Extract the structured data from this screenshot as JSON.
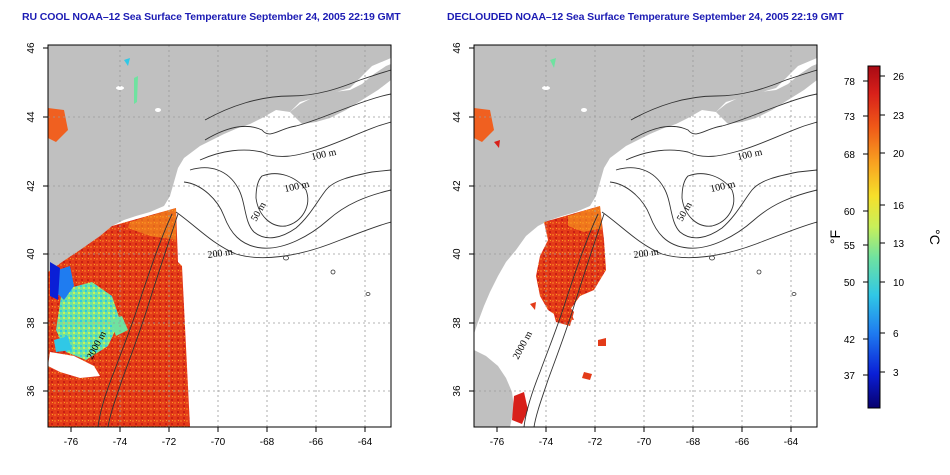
{
  "maps": [
    {
      "title": "RU COOL NOAA–12 Sea Surface Temperature September 24, 2005 22:19 GMT",
      "lat_ticks": [
        "46",
        "44",
        "42",
        "40",
        "38",
        "36"
      ],
      "lon_ticks": [
        "-76",
        "-74",
        "-72",
        "-70",
        "-68",
        "-66",
        "-64"
      ],
      "contour_labels": [
        "100 m",
        "100 m",
        "50 m",
        "200 m",
        "2000 m"
      ]
    },
    {
      "title": "DECLOUDED NOAA–12 Sea Surface Temperature September 24, 2005 22:19 GMT",
      "lat_ticks": [
        "46",
        "44",
        "42",
        "40",
        "38",
        "36"
      ],
      "lon_ticks": [
        "-76",
        "-74",
        "-72",
        "-70",
        "-68",
        "-66",
        "-64"
      ],
      "contour_labels": [
        "100 m",
        "100 m",
        "50 m",
        "200 m",
        "2000 m"
      ]
    }
  ],
  "colorbar": {
    "fahrenheit_label": "°F",
    "celsius_label": "°C",
    "fahrenheit_ticks": [
      "78",
      "73",
      "68",
      "60",
      "55",
      "50",
      "42",
      "37"
    ],
    "celsius_ticks": [
      "26",
      "23",
      "20",
      "16",
      "13",
      "10",
      "6",
      "3"
    ],
    "colors": [
      "#08006e",
      "#0a1fd6",
      "#1f7cf0",
      "#30c8e6",
      "#6fe2a0",
      "#c8f05a",
      "#f6e02a",
      "#f8a020",
      "#f05a18",
      "#d8201a",
      "#a80a14"
    ]
  }
}
